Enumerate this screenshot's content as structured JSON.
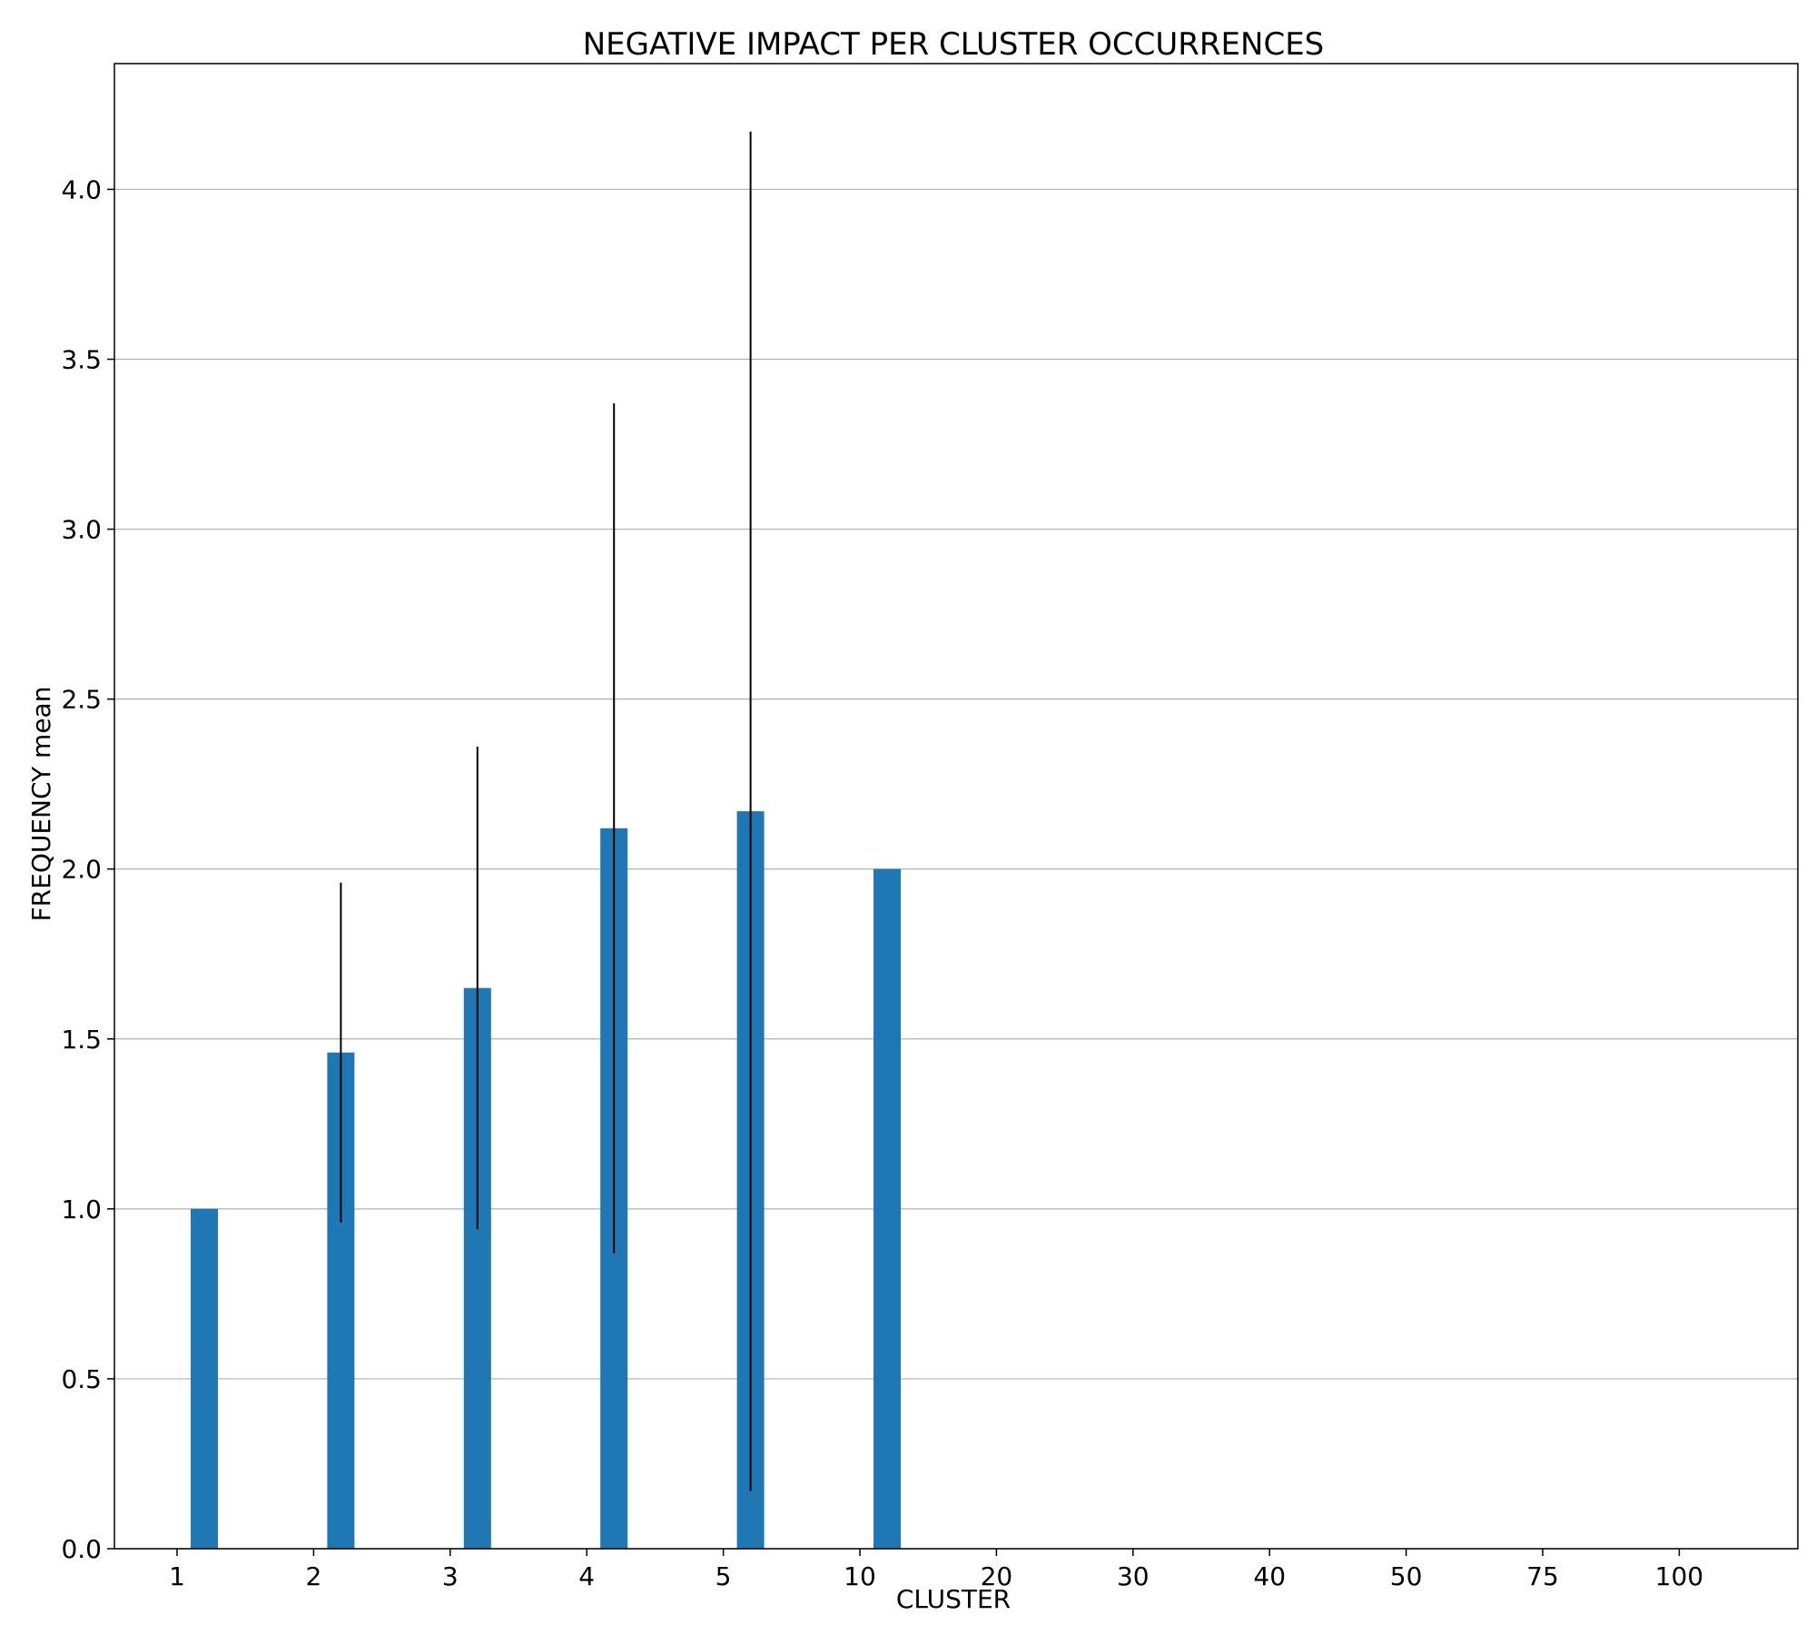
{
  "chart_data": {
    "type": "bar",
    "title": "NEGATIVE IMPACT PER CLUSTER OCCURRENCES",
    "xlabel": "CLUSTER",
    "ylabel": "FREQUENCY mean",
    "categories": [
      "1",
      "2",
      "3",
      "4",
      "5",
      "10",
      "20",
      "30",
      "40",
      "50",
      "75",
      "100"
    ],
    "values": [
      1.0,
      1.46,
      1.65,
      2.12,
      2.17,
      2.0,
      null,
      null,
      null,
      null,
      null,
      null
    ],
    "error_bars": [
      0,
      0.5,
      0.71,
      1.25,
      2.0,
      0,
      null,
      null,
      null,
      null,
      null,
      null
    ],
    "ylim": [
      0,
      4.37
    ],
    "yticks": [
      0.0,
      0.5,
      1.0,
      1.5,
      2.0,
      2.5,
      3.0,
      3.5,
      4.0
    ],
    "ytick_labels": [
      "0.0",
      "0.5",
      "1.0",
      "1.5",
      "2.0",
      "2.5",
      "3.0",
      "3.5",
      "4.0"
    ],
    "grid": "y",
    "colors": {
      "bar": "#1f77b4",
      "error": "#000000",
      "grid": "#b0b0b0"
    }
  }
}
